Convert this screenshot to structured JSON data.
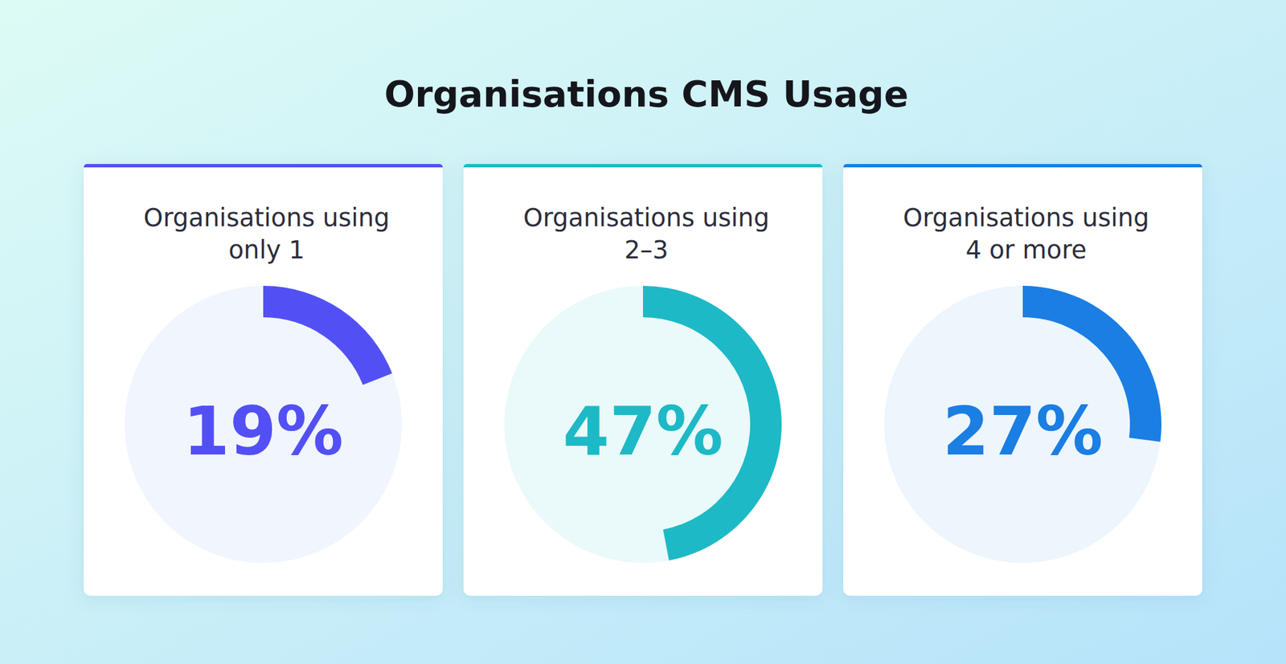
{
  "title": "Organisations CMS Usage",
  "chart_data": [
    {
      "type": "gauge",
      "title": "Organisations using\nonly 1",
      "values": [
        19
      ],
      "value_labels": [
        "19%"
      ],
      "color": "#5250f5",
      "ylim": [
        0,
        100
      ],
      "tick_labels": false,
      "data_labels": true
    },
    {
      "type": "gauge",
      "title": "Organisations using\n2–3",
      "values": [
        47
      ],
      "value_labels": [
        "47%"
      ],
      "color": "#1eb9c6",
      "ylim": [
        0,
        100
      ],
      "tick_labels": false,
      "data_labels": true
    },
    {
      "type": "gauge",
      "title": "Organisations using\n4 or more",
      "values": [
        27
      ],
      "value_labels": [
        "27%"
      ],
      "color": "#1a7ee3",
      "ylim": [
        0,
        100
      ],
      "tick_labels": false,
      "data_labels": true
    }
  ]
}
